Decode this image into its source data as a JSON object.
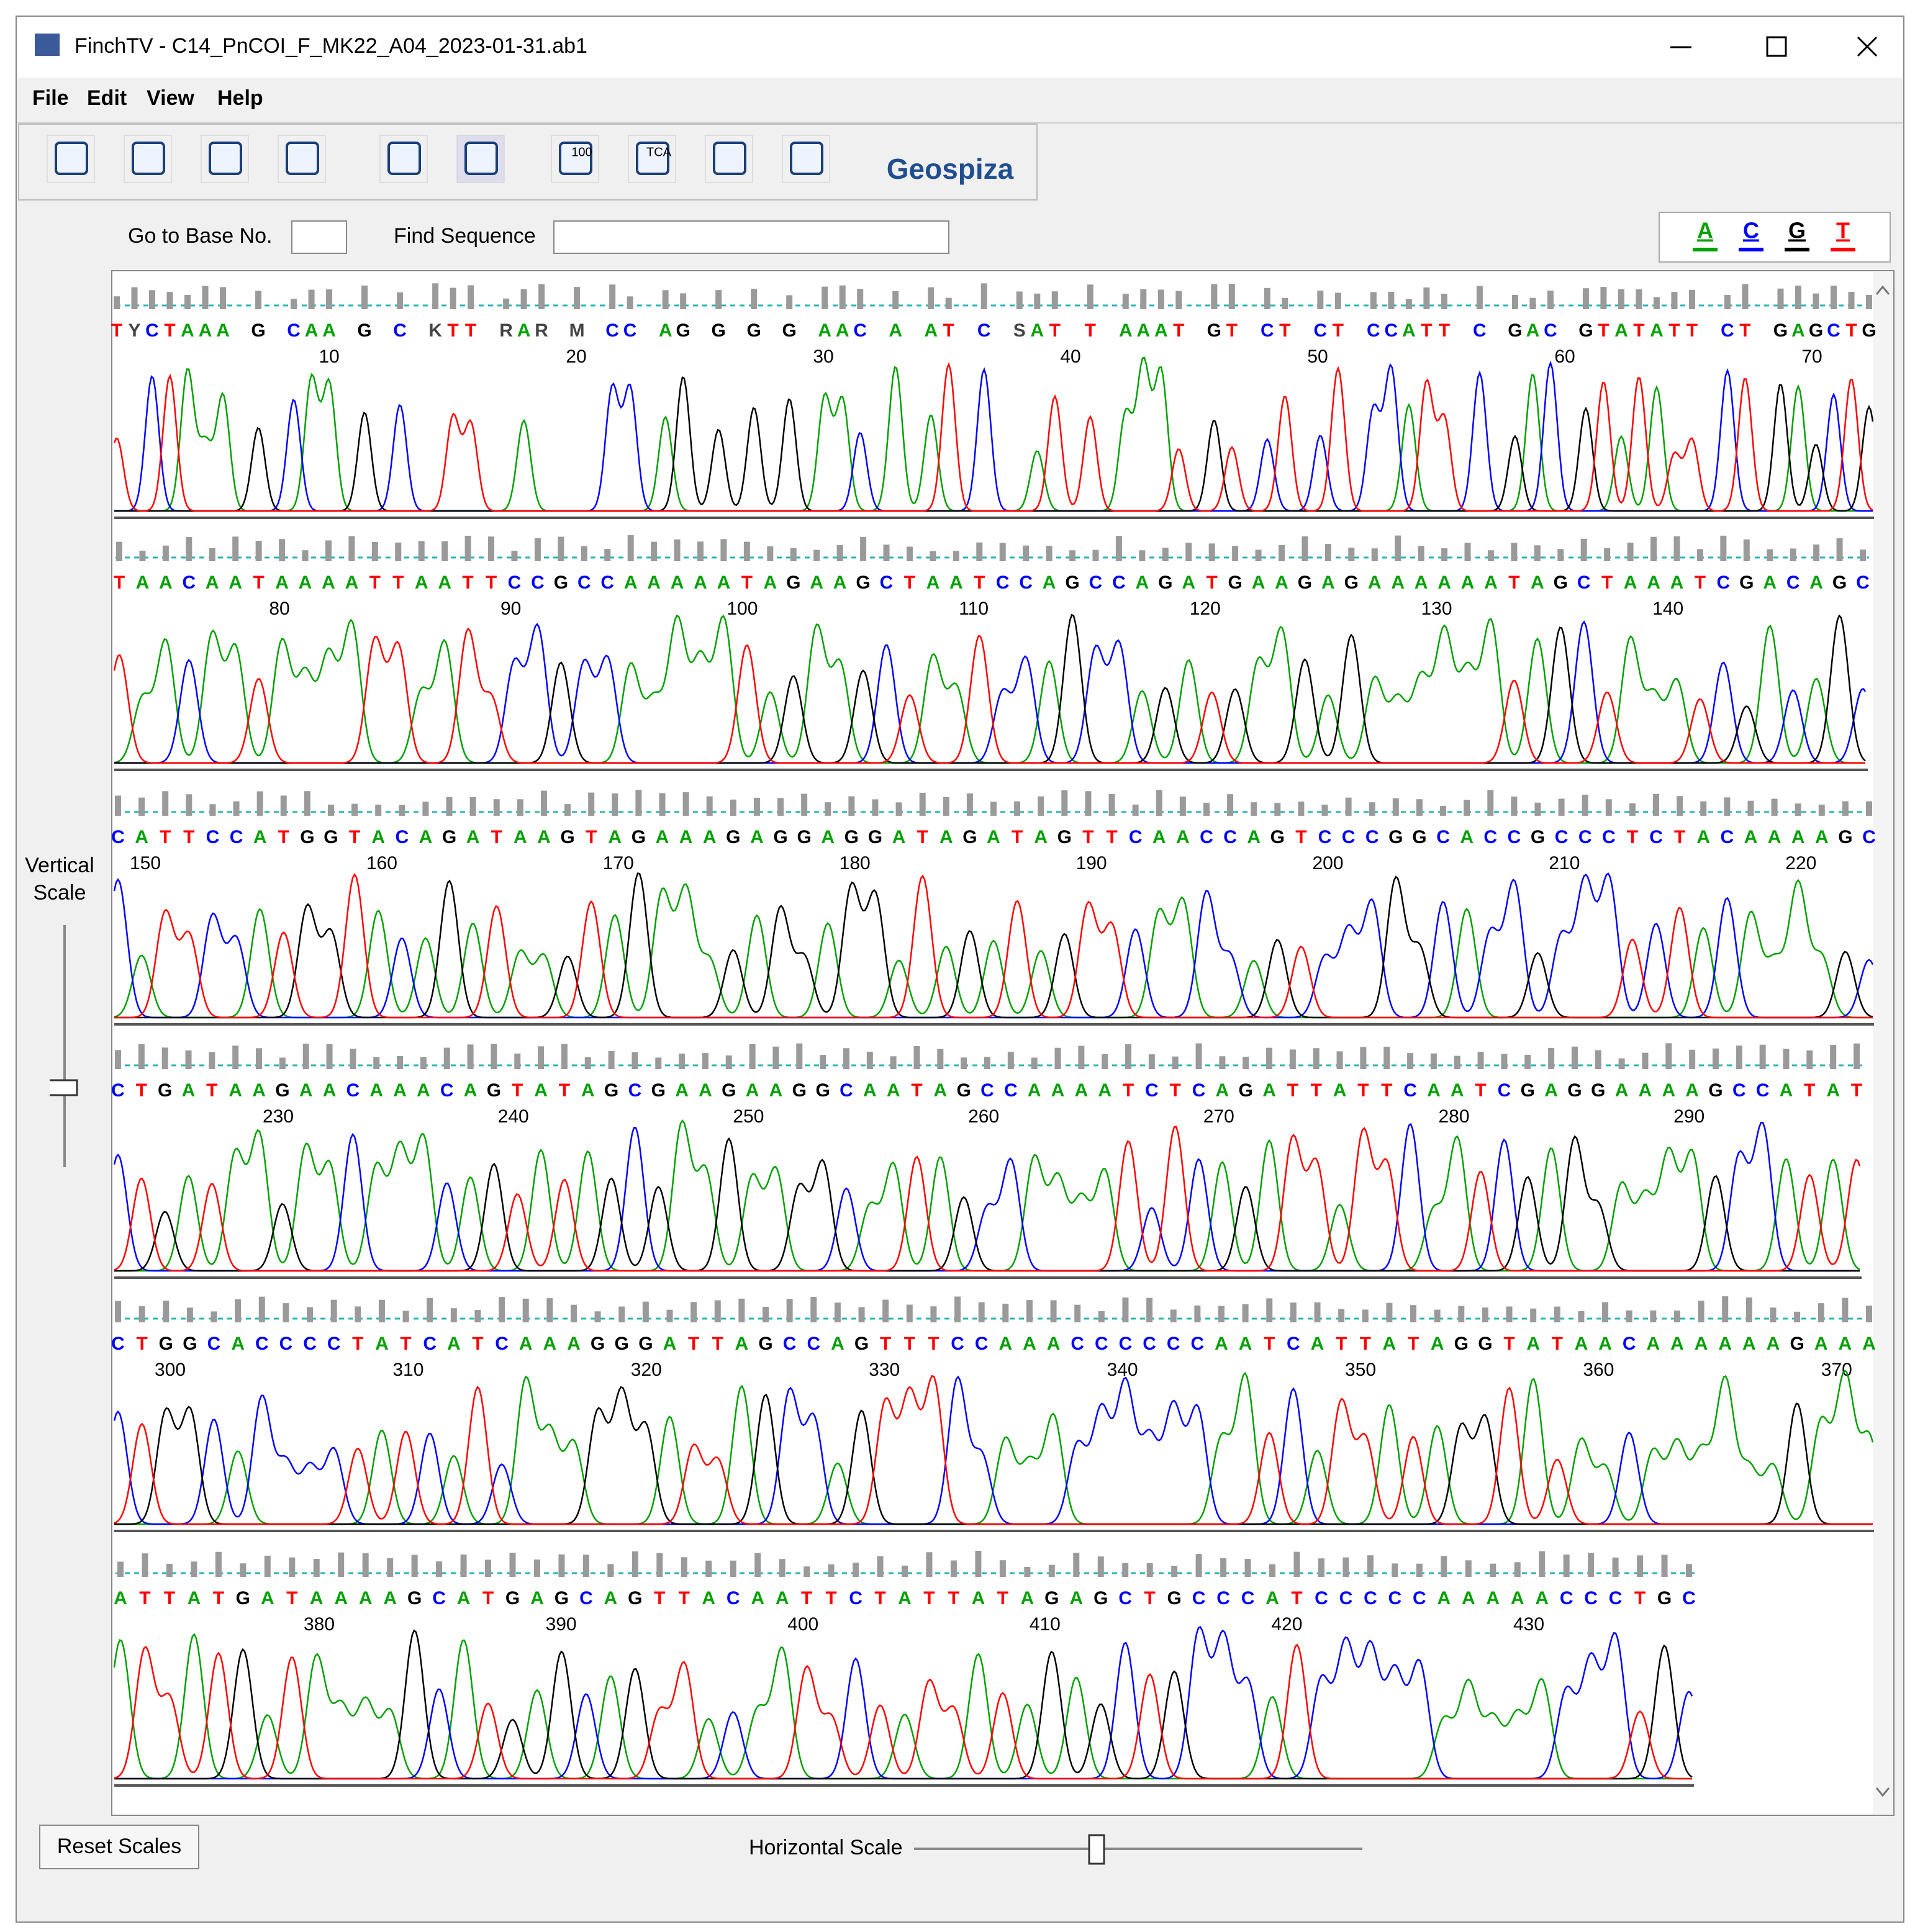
{
  "window": {
    "title": "FinchTV - C14_PnCOI_F_MK22_A04_2023-01-31.ab1"
  },
  "menu": [
    "File",
    "Edit",
    "View",
    "Help"
  ],
  "toolbar": {
    "icon_labels": [
      "100",
      "TCA"
    ],
    "brand": "Geospiza"
  },
  "search": {
    "goto_label": "Go to Base No.",
    "find_label": "Find Sequence"
  },
  "legend": [
    "A",
    "C",
    "G",
    "T"
  ],
  "rows": [
    {
      "sequence": "TYCTAAA G CAA G C KTT RAR M CC AG G G G AAC A AT C SAT T AAAT GT CT CT CCATT C GAC GTATATT CT GAGCTG",
      "positions": [
        10,
        20,
        30,
        40,
        50,
        60,
        70
      ]
    },
    {
      "sequence": "TAACAATAAAATTAATTCCGCCAAAAATAGAAGCTAATCCAGCCAGATGAAGAGAAAAAATAGCTAAATCGACAGC",
      "positions": [
        80,
        90,
        100,
        110,
        120,
        130,
        140
      ]
    },
    {
      "sequence": "CATTCCATGGTACAGATAAGTAGAAAGAGGAGGATAGATAGTTCAACCAGTCCCGGCACCGCCCTCTACAAAAGC",
      "positions": [
        150,
        160,
        170,
        180,
        190,
        200,
        210,
        220
      ]
    },
    {
      "sequence": "CTGATAAGAACAAACAGTATAGCGAAGAAGGCAATAGCCAAAATCTCAGATTATTCAATCGAGGAAAAGCCATAT",
      "positions": [
        230,
        240,
        250,
        260,
        270,
        280,
        290
      ]
    },
    {
      "sequence": "CTGGCACCCCTATCATCAAAGGGATTAGCCAGTTTCCAAACCCCCCAATCATTATAGGTATAACAAAAAAGAAA",
      "positions": [
        300,
        310,
        320,
        330,
        340,
        350,
        360,
        370
      ]
    },
    {
      "sequence": "ATTATGATAAAAGCATGAGCAGTTACAATTCTATTATAGAGCTGCCCATCCCCCAAAAACCCTGC",
      "positions": [
        380,
        390,
        400,
        410,
        420,
        430
      ]
    }
  ],
  "vertical_scale_label": [
    "Vertical",
    "Scale"
  ],
  "reset_button": "Reset Scales",
  "horizontal_scale_label": "Horizontal Scale"
}
